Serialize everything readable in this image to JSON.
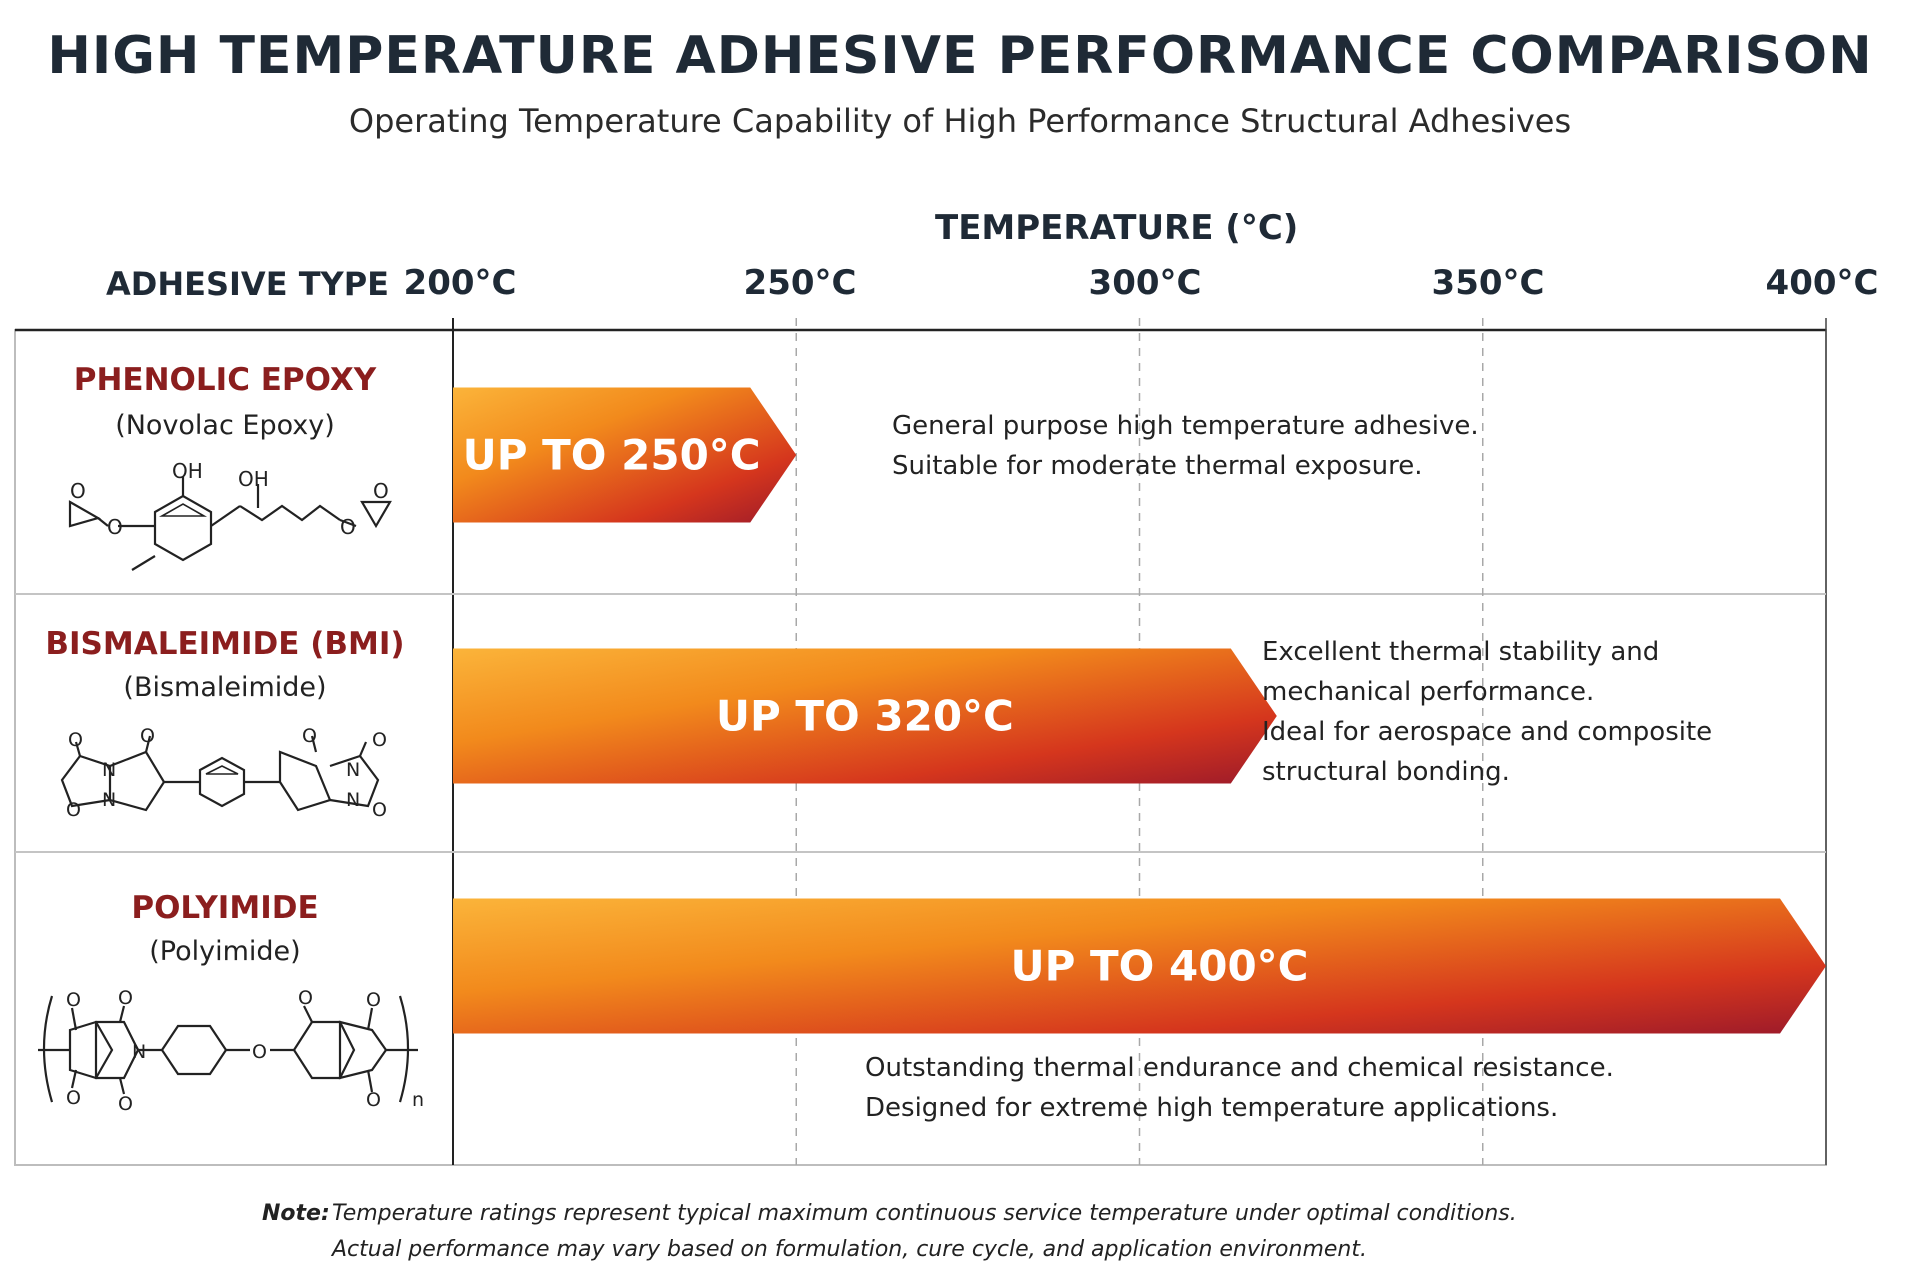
{
  "title": "HIGH TEMPERATURE ADHESIVE PERFORMANCE COMPARISON",
  "subtitle": "Operating Temperature Capability of High Performance Structural Adhesives",
  "column_header": "ADHESIVE TYPE",
  "colors": {
    "bar_start": "#f7a21e",
    "bar_end": "#9c1a2a",
    "name_color": "#8b1e1e",
    "grid": "#bdbdbd"
  },
  "chart_data": {
    "type": "bar",
    "orientation": "horizontal",
    "xlabel": "TEMPERATURE (°C)",
    "xlim": [
      200,
      400
    ],
    "ticks": [
      {
        "value": 200,
        "label": "200°C"
      },
      {
        "value": 250,
        "label": "250°C"
      },
      {
        "value": 300,
        "label": "300°C"
      },
      {
        "value": 350,
        "label": "350°C"
      },
      {
        "value": 400,
        "label": "400°C"
      }
    ],
    "grid": true,
    "rows": [
      {
        "name": "PHENOLIC EPOXY",
        "subname": "(Novolac Epoxy)",
        "structure_icon": "novolac-epoxy-structure",
        "value": 250,
        "bar_label": "UP TO 250°C",
        "description": [
          "General purpose high temperature adhesive.",
          "Suitable for moderate thermal exposure."
        ]
      },
      {
        "name": "BISMALEIMIDE (BMI)",
        "subname": "(Bismaleimide)",
        "structure_icon": "bismaleimide-structure",
        "value": 320,
        "bar_label": "UP TO 320°C",
        "description": [
          "Excellent thermal stability and",
          "mechanical performance.",
          "Ideal for aerospace and composite",
          "structural bonding."
        ]
      },
      {
        "name": "POLYIMIDE",
        "subname": "(Polyimide)",
        "structure_icon": "polyimide-structure",
        "value": 400,
        "bar_label": "UP TO 400°C",
        "description": [
          "Outstanding thermal endurance and chemical resistance.",
          "Designed for extreme high temperature applications."
        ]
      }
    ]
  },
  "note": {
    "label": "Note:",
    "lines": [
      "Temperature ratings represent typical maximum continuous service temperature under optimal conditions.",
      "Actual performance may vary based on formulation, cure cycle, and application environment."
    ]
  }
}
